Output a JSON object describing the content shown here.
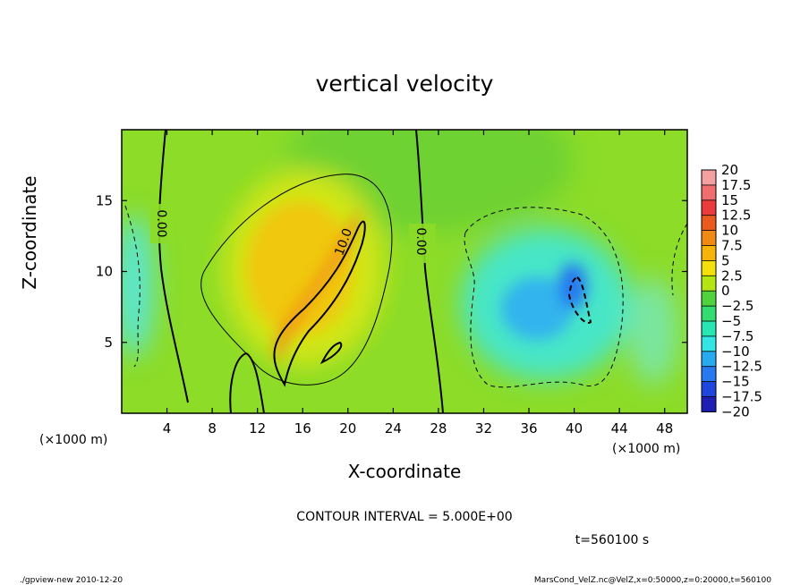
{
  "chart_data": {
    "type": "heatmap",
    "title": "vertical velocity",
    "xlabel": "X-coordinate",
    "ylabel": "Z-coordinate",
    "x_unit_label": "(×1000 m)",
    "y_unit_label": "(×1000 m)",
    "xlim": [
      0,
      50
    ],
    "ylim": [
      0,
      20
    ],
    "x_ticks": [
      4,
      8,
      12,
      16,
      20,
      24,
      28,
      32,
      36,
      40,
      44,
      48
    ],
    "y_ticks": [
      5,
      10,
      15
    ],
    "colorbar": {
      "levels": [
        20,
        17.5,
        15,
        12.5,
        10,
        7.5,
        5,
        2.5,
        0,
        -2.5,
        -5,
        -7.5,
        -10,
        -12.5,
        -15,
        -17.5,
        -20
      ],
      "colors": [
        "#f4a0a0",
        "#f06e6e",
        "#ea3c3c",
        "#ea5a1e",
        "#f08a14",
        "#f6b40a",
        "#f4e00a",
        "#b4e614",
        "#50d23c",
        "#32dc6e",
        "#28e6b4",
        "#32e6e6",
        "#28aaf0",
        "#2878f0",
        "#1e46dc",
        "#1e1eb4",
        "#6e14b4"
      ]
    },
    "contour_interval_text": "CONTOUR INTERVAL = 5.000E+00",
    "contour_labels": [
      "0.00",
      "10.0",
      "0.00"
    ],
    "time_text": "t=560100 s",
    "background_value": 1.5,
    "features": [
      {
        "name": "updraft-plume",
        "x": 16.5,
        "z": 9.5,
        "peak": 11.5
      },
      {
        "name": "updraft-core",
        "x": 17,
        "z": 7,
        "peak": 13.5
      },
      {
        "name": "downdraft-region",
        "x": 38,
        "z": 8,
        "peak": -8
      },
      {
        "name": "downdraft-core",
        "x": 40.5,
        "z": 8,
        "peak": -11
      },
      {
        "name": "left-edge-downdraft",
        "x": 0.5,
        "z": 9,
        "peak": -5
      }
    ]
  },
  "footer": {
    "left": "./gpview-new  2010-12-20",
    "right": "MarsCond_VelZ.nc@VelZ,x=0:50000,z=0:20000,t=560100"
  }
}
